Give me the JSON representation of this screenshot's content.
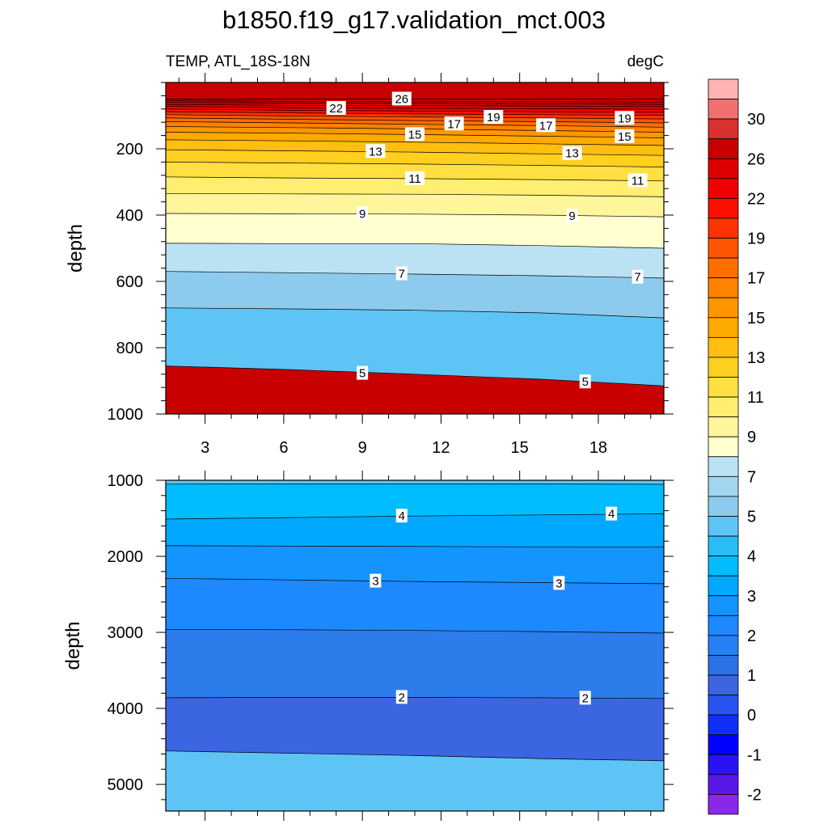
{
  "chart_data": [
    {
      "type": "heatmap",
      "title": "b1850.f19_g17.validation_mct.003",
      "left_subtitle": "TEMP, ATL_18S-18N",
      "right_subtitle": "degC",
      "xlabel": "",
      "ylabel": "depth",
      "x_range": [
        1.5,
        20.5
      ],
      "ylim": [
        0,
        1000
      ],
      "y_inverted": true,
      "x_ticks": [
        3,
        6,
        9,
        12,
        15,
        18
      ],
      "y_ticks": [
        200,
        400,
        600,
        800,
        1000
      ],
      "grid": false,
      "contour_levels": [
        5,
        6,
        7,
        8,
        9,
        10,
        11,
        12,
        13,
        14,
        15,
        16,
        17,
        18,
        19,
        20,
        21,
        22,
        23,
        24,
        25,
        26
      ],
      "isotherm_depths": [
        {
          "level": 26,
          "depths": [
            50,
            50,
            50,
            50,
            50
          ]
        },
        {
          "level": 25,
          "depths": [
            55,
            57,
            58,
            58,
            59
          ]
        },
        {
          "level": 24,
          "depths": [
            60,
            62,
            63,
            64,
            66
          ]
        },
        {
          "level": 23,
          "depths": [
            66,
            69,
            70,
            71,
            73
          ]
        },
        {
          "level": 22,
          "depths": [
            72,
            76,
            78,
            79,
            81
          ]
        },
        {
          "level": 21,
          "depths": [
            80,
            84,
            86,
            88,
            90
          ]
        },
        {
          "level": 20,
          "depths": [
            88,
            92,
            95,
            97,
            99
          ]
        },
        {
          "level": 19,
          "depths": [
            97,
            101,
            104,
            107,
            110
          ]
        },
        {
          "level": 18,
          "depths": [
            107,
            111,
            115,
            118,
            122
          ]
        },
        {
          "level": 17,
          "depths": [
            118,
            122,
            126,
            130,
            135
          ]
        },
        {
          "level": 16,
          "depths": [
            133,
            136,
            140,
            145,
            150
          ]
        },
        {
          "level": 15,
          "depths": [
            150,
            153,
            157,
            162,
            167
          ]
        },
        {
          "level": 14,
          "depths": [
            173,
            176,
            180,
            185,
            190
          ]
        },
        {
          "level": 13,
          "depths": [
            203,
            206,
            210,
            215,
            220
          ]
        },
        {
          "level": 12,
          "depths": [
            240,
            243,
            246,
            250,
            255
          ]
        },
        {
          "level": 11,
          "depths": [
            285,
            288,
            290,
            293,
            297
          ]
        },
        {
          "level": 10,
          "depths": [
            335,
            336,
            337,
            340,
            345
          ]
        },
        {
          "level": 9,
          "depths": [
            395,
            396,
            397,
            400,
            405
          ]
        },
        {
          "level": 8,
          "depths": [
            485,
            486,
            486,
            492,
            500
          ]
        },
        {
          "level": 7,
          "depths": [
            570,
            574,
            578,
            583,
            590
          ]
        },
        {
          "level": 6,
          "depths": [
            680,
            683,
            687,
            695,
            710
          ]
        },
        {
          "level": 5,
          "depths": [
            855,
            866,
            880,
            895,
            915
          ]
        }
      ],
      "line_labels": [
        {
          "text": "26",
          "x": 10.5,
          "y": 50
        },
        {
          "text": "22",
          "x": 8.0,
          "y": 78
        },
        {
          "text": "19",
          "x": 14.0,
          "y": 105
        },
        {
          "text": "19",
          "x": 19.0,
          "y": 108
        },
        {
          "text": "17",
          "x": 12.5,
          "y": 125
        },
        {
          "text": "17",
          "x": 16.0,
          "y": 130
        },
        {
          "text": "15",
          "x": 11.0,
          "y": 157
        },
        {
          "text": "15",
          "x": 19.0,
          "y": 163
        },
        {
          "text": "13",
          "x": 9.5,
          "y": 208
        },
        {
          "text": "13",
          "x": 17.0,
          "y": 214
        },
        {
          "text": "11",
          "x": 11.0,
          "y": 290
        },
        {
          "text": "11",
          "x": 19.5,
          "y": 296
        },
        {
          "text": "9",
          "x": 9.0,
          "y": 396
        },
        {
          "text": "9",
          "x": 17.0,
          "y": 403
        },
        {
          "text": "7",
          "x": 10.5,
          "y": 577
        },
        {
          "text": "7",
          "x": 19.5,
          "y": 587
        },
        {
          "text": "5",
          "x": 9.0,
          "y": 877
        },
        {
          "text": "5",
          "x": 17.5,
          "y": 903
        }
      ]
    },
    {
      "type": "heatmap",
      "xlabel": "",
      "ylabel": "depth",
      "x_range": [
        1.5,
        20.5
      ],
      "ylim": [
        1000,
        5350
      ],
      "y_inverted": true,
      "y_ticks": [
        1000,
        2000,
        3000,
        4000,
        5000
      ],
      "grid": false,
      "contour_levels": [
        1.5,
        2,
        2.5,
        3,
        3.5,
        4,
        4.5
      ],
      "isotherm_depths": [
        {
          "level": 4.5,
          "depths": [
            1050,
            1048,
            1047,
            1048,
            1052
          ]
        },
        {
          "level": 4,
          "depths": [
            1510,
            1490,
            1470,
            1455,
            1440
          ]
        },
        {
          "level": 3.5,
          "depths": [
            1860,
            1865,
            1870,
            1875,
            1880
          ]
        },
        {
          "level": 3,
          "depths": [
            2290,
            2310,
            2330,
            2345,
            2360
          ]
        },
        {
          "level": 2.5,
          "depths": [
            2960,
            2965,
            2975,
            2990,
            3010
          ]
        },
        {
          "level": 2,
          "depths": [
            3860,
            3855,
            3855,
            3860,
            3870
          ]
        },
        {
          "level": 1.5,
          "depths": [
            4560,
            4590,
            4620,
            4660,
            4690
          ]
        }
      ],
      "line_labels": [
        {
          "text": "4",
          "x": 10.5,
          "y": 1470
        },
        {
          "text": "4",
          "x": 18.5,
          "y": 1443
        },
        {
          "text": "3",
          "x": 9.5,
          "y": 2325
        },
        {
          "text": "3",
          "x": 16.5,
          "y": 2355
        },
        {
          "text": "2",
          "x": 10.5,
          "y": 3855
        },
        {
          "text": "2",
          "x": 17.5,
          "y": 3865
        }
      ]
    }
  ],
  "colorbar": {
    "labels": [
      "30",
      "26",
      "22",
      "19",
      "17",
      "15",
      "13",
      "11",
      "9",
      "7",
      "5",
      "4",
      "3",
      "2",
      "1",
      "0",
      "-1",
      "-2"
    ],
    "colors": [
      "#ffb3b3",
      "#f07070",
      "#d93030",
      "#c80000",
      "#de0000",
      "#f00000",
      "#ff0f00",
      "#ff3300",
      "#ff5500",
      "#ff6e00",
      "#ff8200",
      "#ff9600",
      "#ffaa00",
      "#ffbe10",
      "#ffd020",
      "#ffe040",
      "#ffee70",
      "#fff59a",
      "#ffffcf",
      "#bbe2f3",
      "#a2d5f0",
      "#8ccbee",
      "#5ec4f5",
      "#28bdf7",
      "#00bdff",
      "#00a8ff",
      "#1394ff",
      "#1e88ff",
      "#2581f2",
      "#2c72e6",
      "#3b65e1",
      "#2753f0",
      "#0f2ff8",
      "#0000ff",
      "#2a12f5",
      "#5a18e8",
      "#8a28e8"
    ]
  }
}
